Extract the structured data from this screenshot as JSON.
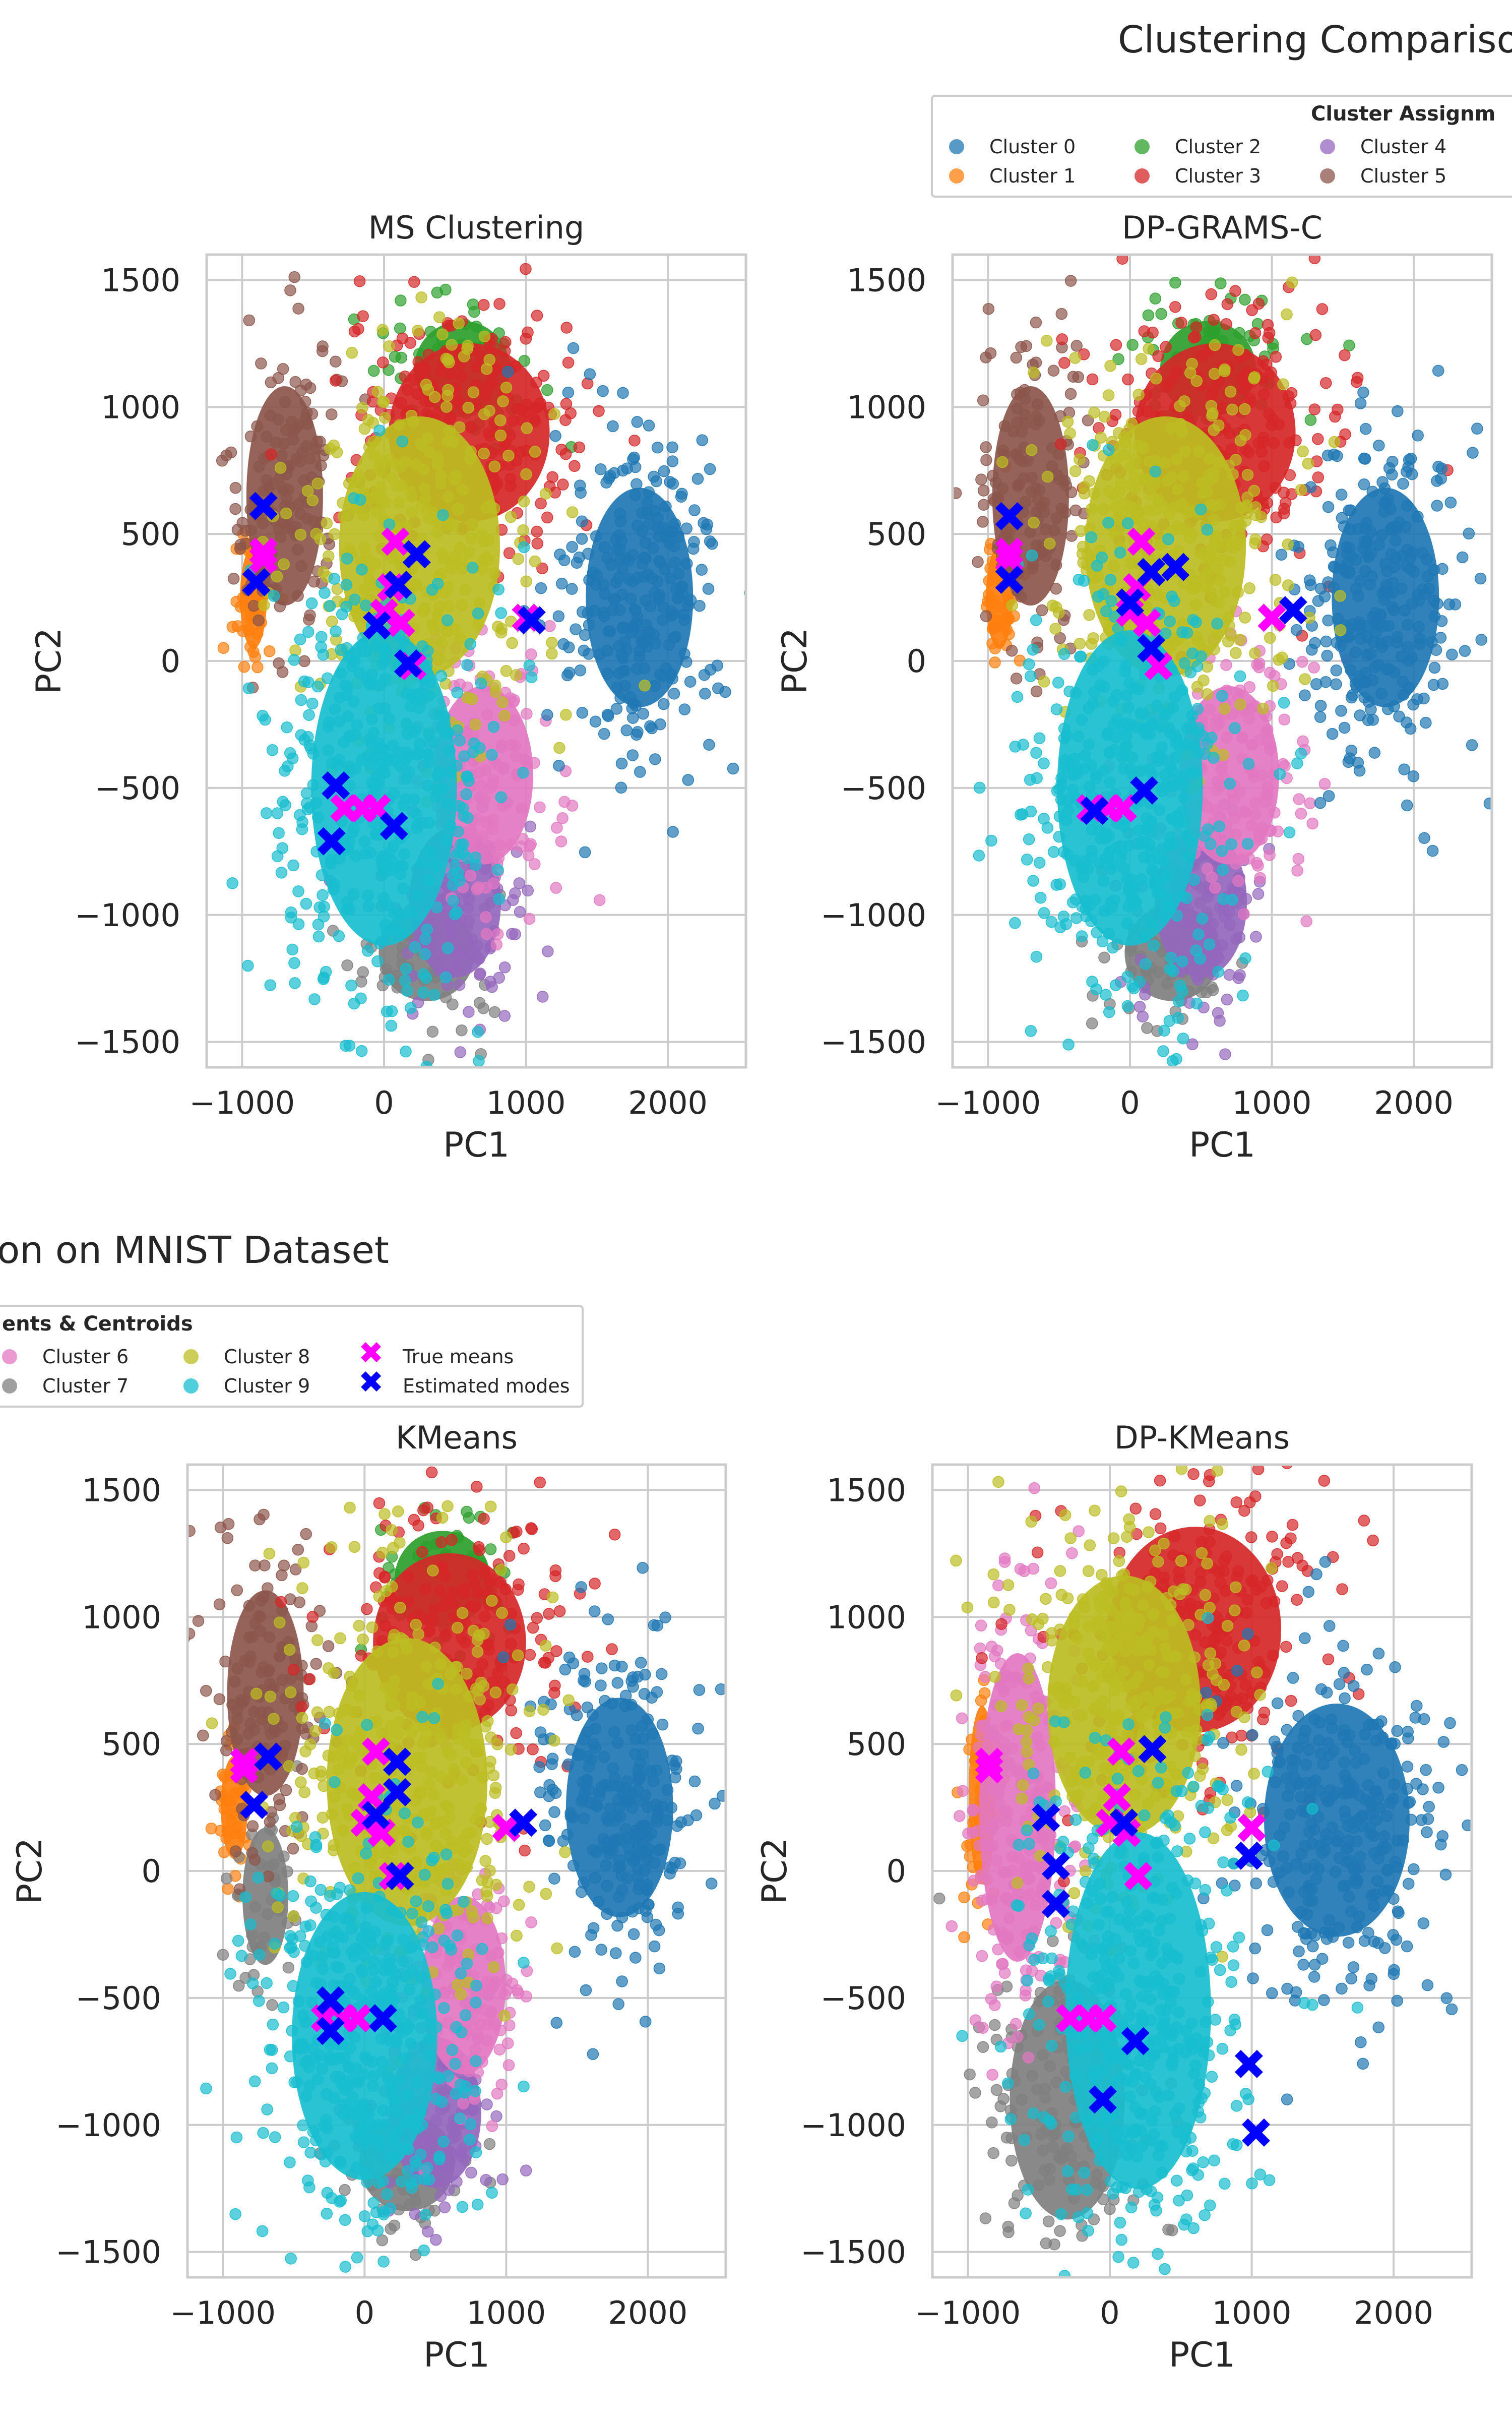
{
  "suptitle_line1": "Clustering Compariso",
  "suptitle_line2": "on on MNIST Dataset",
  "legend": {
    "title_left": "Cluster Assignm",
    "title_right": "ents & Centroids",
    "items_left": [
      {
        "label": "Cluster 0",
        "color": "#1f77b4"
      },
      {
        "label": "Cluster 1",
        "color": "#ff7f0e"
      },
      {
        "label": "Cluster 2",
        "color": "#2ca02c"
      },
      {
        "label": "Cluster 3",
        "color": "#d62728"
      },
      {
        "label": "Cluster 4",
        "color": "#9467bd"
      },
      {
        "label": "Cluster 5",
        "color": "#8c564b"
      }
    ],
    "items_right": [
      {
        "label": "Cluster 6",
        "color": "#e377c2"
      },
      {
        "label": "Cluster 7",
        "color": "#7f7f7f"
      },
      {
        "label": "Cluster 8",
        "color": "#bcbd22"
      },
      {
        "label": "Cluster 9",
        "color": "#17becf"
      },
      {
        "label": "True means",
        "color": "#ff00ff",
        "marker": "x"
      },
      {
        "label": "Estimated modes",
        "color": "#0000ff",
        "marker": "x"
      }
    ]
  },
  "colors": {
    "true_means": "#ff00ff",
    "estimated_modes": "#0000ff",
    "clusters": [
      "#1f77b4",
      "#ff7f0e",
      "#2ca02c",
      "#d62728",
      "#9467bd",
      "#8c564b",
      "#e377c2",
      "#7f7f7f",
      "#bcbd22",
      "#17becf"
    ]
  },
  "chart_data": [
    {
      "type": "scatter",
      "title": "MS Clustering",
      "xlabel": "PC1",
      "ylabel": "PC2",
      "xlim": [
        -1250,
        2550
      ],
      "ylim": [
        -1600,
        1600
      ],
      "xticks": [
        -1000,
        0,
        1000,
        2000
      ],
      "yticks": [
        -1500,
        -1000,
        -500,
        0,
        500,
        1000,
        1500
      ],
      "grid": true,
      "true_means": [
        [
          -850,
          430
        ],
        [
          -850,
          400
        ],
        [
          80,
          470
        ],
        [
          0,
          190
        ],
        [
          120,
          150
        ],
        [
          200,
          -20
        ],
        [
          50,
          290
        ],
        [
          1000,
          170
        ],
        [
          -280,
          -580
        ],
        [
          -150,
          -580
        ],
        [
          -50,
          -580
        ]
      ],
      "estimated_modes": [
        [
          -850,
          610
        ],
        [
          -900,
          310
        ],
        [
          230,
          420
        ],
        [
          100,
          300
        ],
        [
          -50,
          140
        ],
        [
          170,
          -10
        ],
        [
          1040,
          160
        ],
        [
          -340,
          -490
        ],
        [
          -370,
          -710
        ],
        [
          70,
          -650
        ]
      ]
    },
    {
      "type": "scatter",
      "title": "DP-GRAMS-C",
      "xlabel": "PC1",
      "ylabel": "PC2",
      "xlim": [
        -1250,
        2550
      ],
      "ylim": [
        -1600,
        1600
      ],
      "xticks": [
        -1000,
        0,
        1000,
        2000
      ],
      "yticks": [
        -1500,
        -1000,
        -500,
        0,
        500,
        1000,
        1500
      ],
      "grid": true,
      "true_means": [
        [
          -850,
          430
        ],
        [
          -850,
          400
        ],
        [
          80,
          470
        ],
        [
          0,
          190
        ],
        [
          120,
          150
        ],
        [
          200,
          -20
        ],
        [
          50,
          290
        ],
        [
          1000,
          170
        ],
        [
          -280,
          -580
        ],
        [
          -150,
          -580
        ],
        [
          -50,
          -580
        ]
      ],
      "estimated_modes": [
        [
          -850,
          570
        ],
        [
          -850,
          320
        ],
        [
          150,
          350
        ],
        [
          320,
          370
        ],
        [
          0,
          230
        ],
        [
          150,
          50
        ],
        [
          1150,
          200
        ],
        [
          100,
          -510
        ],
        [
          -250,
          -590
        ]
      ]
    },
    {
      "type": "scatter",
      "title": "KMeans",
      "xlabel": "PC1",
      "ylabel": "PC2",
      "xlim": [
        -1250,
        2550
      ],
      "ylim": [
        -1600,
        1600
      ],
      "xticks": [
        -1000,
        0,
        1000,
        2000
      ],
      "yticks": [
        -1500,
        -1000,
        -500,
        0,
        500,
        1000,
        1500
      ],
      "grid": true,
      "true_means": [
        [
          -850,
          430
        ],
        [
          -850,
          400
        ],
        [
          80,
          470
        ],
        [
          0,
          190
        ],
        [
          120,
          150
        ],
        [
          200,
          -20
        ],
        [
          50,
          290
        ],
        [
          1000,
          170
        ],
        [
          -280,
          -580
        ],
        [
          -150,
          -580
        ],
        [
          -50,
          -580
        ]
      ],
      "estimated_modes": [
        [
          -680,
          450
        ],
        [
          -780,
          260
        ],
        [
          230,
          430
        ],
        [
          230,
          310
        ],
        [
          80,
          220
        ],
        [
          250,
          -20
        ],
        [
          1120,
          190
        ],
        [
          -240,
          -510
        ],
        [
          -240,
          -630
        ],
        [
          130,
          -580
        ]
      ]
    },
    {
      "type": "scatter",
      "title": "DP-KMeans",
      "xlabel": "PC1",
      "ylabel": "PC2",
      "xlim": [
        -1250,
        2550
      ],
      "ylim": [
        -1600,
        1600
      ],
      "xticks": [
        -1000,
        0,
        1000,
        2000
      ],
      "yticks": [
        -1500,
        -1000,
        -500,
        0,
        500,
        1000,
        1500
      ],
      "grid": true,
      "true_means": [
        [
          -850,
          430
        ],
        [
          -850,
          400
        ],
        [
          80,
          470
        ],
        [
          0,
          190
        ],
        [
          120,
          150
        ],
        [
          200,
          -20
        ],
        [
          50,
          290
        ],
        [
          1000,
          170
        ],
        [
          -280,
          -580
        ],
        [
          -150,
          -580
        ],
        [
          -50,
          -580
        ]
      ],
      "estimated_modes": [
        [
          300,
          480
        ],
        [
          100,
          190
        ],
        [
          -450,
          210
        ],
        [
          -380,
          20
        ],
        [
          -380,
          -130
        ],
        [
          980,
          60
        ],
        [
          180,
          -670
        ],
        [
          -50,
          -900
        ],
        [
          980,
          -760
        ],
        [
          1030,
          -1030
        ]
      ]
    }
  ]
}
